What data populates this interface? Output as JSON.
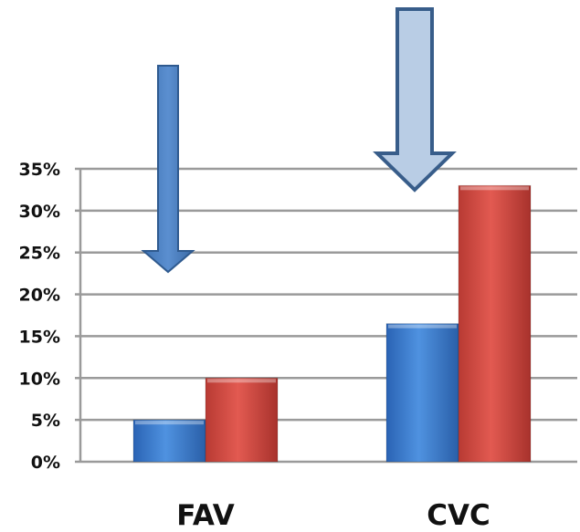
{
  "chart_data": {
    "type": "bar",
    "title": "",
    "xlabel": "",
    "ylabel": "",
    "categories": [
      "FAV",
      "CVC"
    ],
    "series": [
      {
        "values": [
          5,
          16.5
        ],
        "color": "#3b7dd1"
      },
      {
        "values": [
          10,
          33
        ],
        "color": "#d8473f"
      }
    ],
    "ylim": [
      0,
      35
    ],
    "yticks": [
      0,
      5,
      10,
      15,
      20,
      25,
      30,
      35
    ],
    "ytick_labels": [
      "0%",
      "5%",
      "10%",
      "15%",
      "20%",
      "25%",
      "30%",
      "35%"
    ],
    "grid": true,
    "legend": "none",
    "annotations": [
      {
        "type": "down-arrow",
        "target": "FAV",
        "color": "#4a7ebb",
        "icon": "down-arrow-icon"
      },
      {
        "type": "down-arrow",
        "target": "CVC",
        "color": "#b9cde5",
        "outline": "#385d8a",
        "icon": "down-arrow-icon"
      }
    ]
  }
}
